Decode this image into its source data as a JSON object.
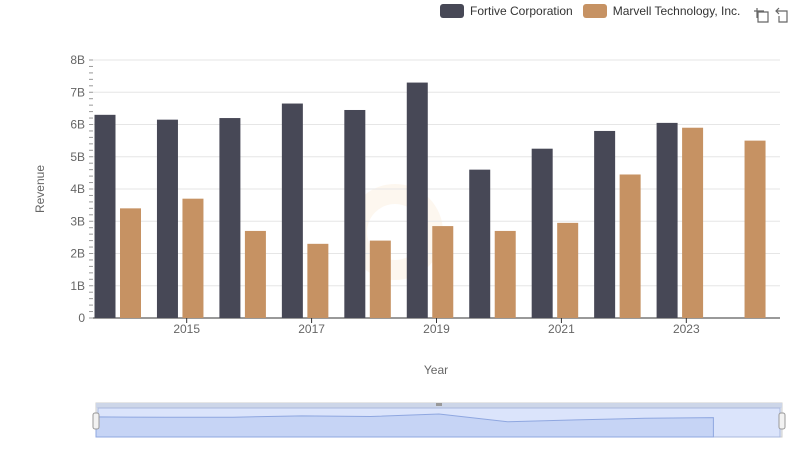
{
  "chart_data": {
    "type": "bar",
    "categories": [
      "2014",
      "2015",
      "2016",
      "2017",
      "2018",
      "2019",
      "2020",
      "2021",
      "2022",
      "2023",
      "2024"
    ],
    "xtick_labels": [
      "2015",
      "2017",
      "2019",
      "2021",
      "2023"
    ],
    "series": [
      {
        "name": "Fortive Corporation",
        "color": "#474856",
        "values": [
          6.3,
          6.15,
          6.2,
          6.65,
          6.45,
          7.3,
          4.6,
          5.25,
          5.8,
          6.05,
          null
        ]
      },
      {
        "name": "Marvell Technology, Inc.",
        "color": "#c69263",
        "values": [
          3.4,
          3.7,
          2.7,
          2.3,
          2.4,
          2.85,
          2.7,
          2.95,
          4.45,
          5.9,
          5.5
        ]
      }
    ],
    "xlabel": "Year",
    "ylabel": "Revenue",
    "ylim": [
      0,
      8
    ],
    "ytick_labels": [
      "0",
      "1B",
      "2B",
      "3B",
      "4B",
      "5B",
      "6B",
      "7B",
      "8B"
    ],
    "grid": true,
    "legend_position": "top-right"
  },
  "toolbar": {
    "icons": [
      "zoom-icon",
      "reset-zoom-icon"
    ]
  }
}
